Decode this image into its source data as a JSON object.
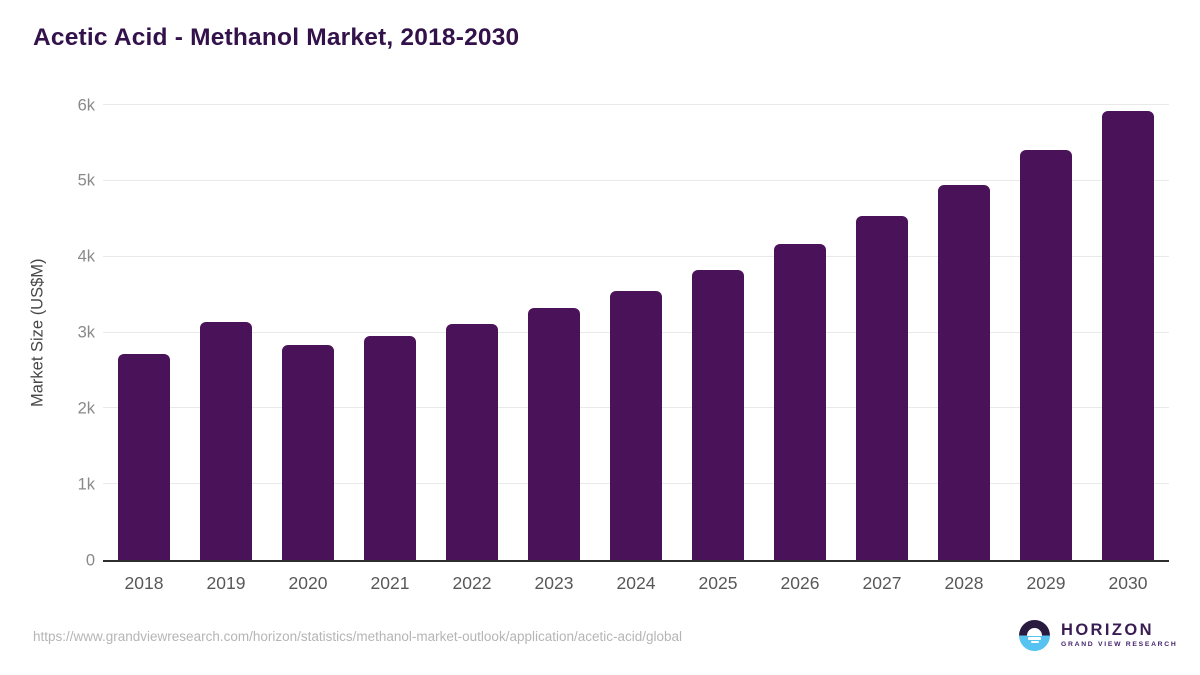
{
  "title": "Acetic Acid - Methanol Market, 2018-2030",
  "chart_data": {
    "type": "bar",
    "title": "Acetic Acid - Methanol Market, 2018-2030",
    "categories": [
      "2018",
      "2019",
      "2020",
      "2021",
      "2022",
      "2023",
      "2024",
      "2025",
      "2026",
      "2027",
      "2028",
      "2029",
      "2030"
    ],
    "values": [
      2720,
      3140,
      2830,
      2950,
      3110,
      3320,
      3550,
      3830,
      4170,
      4540,
      4950,
      5410,
      5920
    ],
    "xlabel": "",
    "ylabel": "Market Size (US$M)",
    "ylim": [
      0,
      6000
    ],
    "yticks": [
      {
        "label": "0",
        "value": 0
      },
      {
        "label": "1k",
        "value": 1000
      },
      {
        "label": "2k",
        "value": 2000
      },
      {
        "label": "3k",
        "value": 3000
      },
      {
        "label": "4k",
        "value": 4000
      },
      {
        "label": "5k",
        "value": 5000
      },
      {
        "label": "6k",
        "value": 6000
      }
    ],
    "grid": true,
    "legend": false,
    "bar_color": "#4a1259"
  },
  "colors": {
    "title": "#33114a",
    "bar": "#4a1259",
    "gridline": "#e9e9e9",
    "axis_line": "#2e2e2e",
    "ytick_text": "#898989",
    "xtick_text": "#58585a",
    "url_text": "#b5b5b5",
    "logo_dark": "#291a40",
    "logo_blue": "#57c3f0"
  },
  "footer": {
    "source_url": "https://www.grandviewresearch.com/horizon/statistics/methanol-market-outlook/application/acetic-acid/global",
    "logo": {
      "name": "HORIZON",
      "subtitle": "GRAND VIEW RESEARCH"
    }
  }
}
